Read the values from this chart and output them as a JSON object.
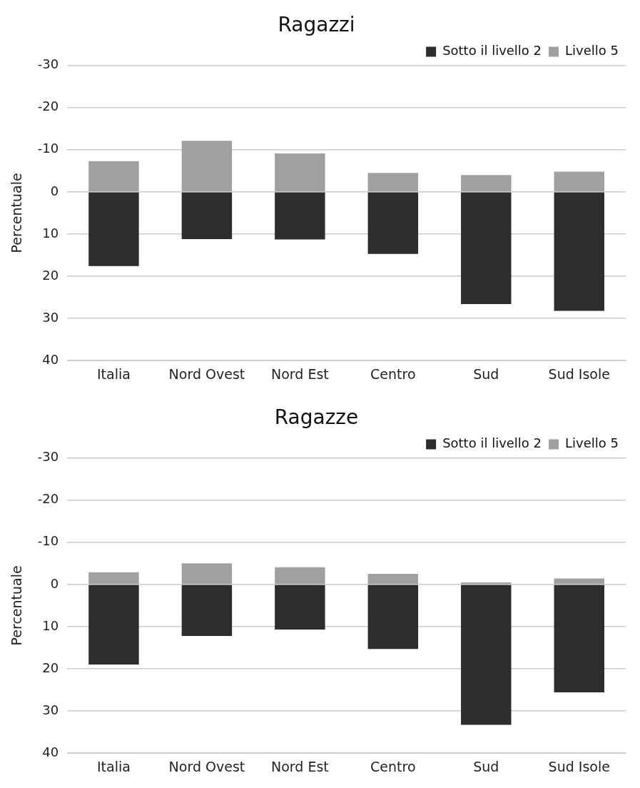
{
  "chart_data": [
    {
      "type": "bar",
      "title": "Ragazzi",
      "ylabel": "Percentuale",
      "categories": [
        "Italia",
        "Nord Ovest",
        "Nord Est",
        "Centro",
        "Sud",
        "Sud Isole"
      ],
      "stacked": true,
      "series": [
        {
          "name": "Sotto il livello 2",
          "color": "#2d2d2d",
          "values": [
            17.6,
            11.2,
            11.3,
            14.7,
            26.6,
            28.2
          ]
        },
        {
          "name": "Livello 5",
          "color": "#a0a0a0",
          "values": [
            -7.3,
            -12.1,
            -9.1,
            -4.5,
            -4.0,
            -4.8
          ]
        }
      ],
      "ylim": [
        40,
        -30
      ],
      "yticks": [
        -30,
        -20,
        -10,
        0,
        10,
        20,
        30,
        40
      ],
      "grid": "y",
      "legend": "top right"
    },
    {
      "type": "bar",
      "title": "Ragazze",
      "ylabel": "Percentuale",
      "categories": [
        "Italia",
        "Nord Ovest",
        "Nord Est",
        "Centro",
        "Sud",
        "Sud Isole"
      ],
      "stacked": true,
      "series": [
        {
          "name": "Sotto il livello 2",
          "color": "#2d2d2d",
          "values": [
            19.0,
            12.2,
            10.7,
            15.3,
            33.3,
            25.6
          ]
        },
        {
          "name": "Livello 5",
          "color": "#a0a0a0",
          "values": [
            -2.9,
            -5.0,
            -4.1,
            -2.5,
            -0.5,
            -1.4
          ]
        }
      ],
      "ylim": [
        40,
        -30
      ],
      "yticks": [
        -30,
        -20,
        -10,
        0,
        10,
        20,
        30,
        40
      ],
      "grid": "y",
      "legend": "top right"
    }
  ]
}
